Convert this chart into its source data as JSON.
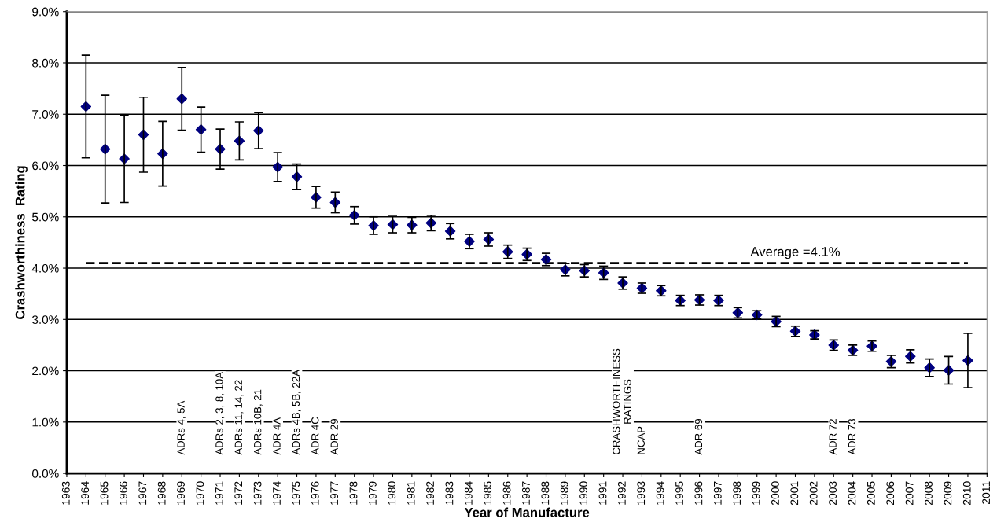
{
  "chart_data": {
    "type": "scatter",
    "xlabel": "Year of Manufacture",
    "ylabel": "Crashworthiness  Rating",
    "x": [
      1964,
      1965,
      1966,
      1967,
      1968,
      1969,
      1970,
      1971,
      1972,
      1973,
      1974,
      1975,
      1976,
      1977,
      1978,
      1979,
      1980,
      1981,
      1982,
      1983,
      1984,
      1985,
      1986,
      1987,
      1988,
      1989,
      1990,
      1991,
      1992,
      1993,
      1994,
      1995,
      1996,
      1997,
      1998,
      1999,
      2000,
      2001,
      2002,
      2003,
      2004,
      2005,
      2006,
      2007,
      2008,
      2009,
      2010
    ],
    "series": [
      {
        "color": "#000080",
        "values": [
          7.15,
          6.32,
          6.13,
          6.6,
          6.23,
          7.3,
          6.7,
          6.32,
          6.48,
          6.68,
          5.97,
          5.78,
          5.38,
          5.28,
          5.03,
          4.83,
          4.85,
          4.84,
          4.88,
          4.72,
          4.52,
          4.56,
          4.32,
          4.27,
          4.17,
          3.97,
          3.95,
          3.91,
          3.71,
          3.61,
          3.56,
          3.37,
          3.38,
          3.37,
          3.13,
          3.09,
          2.96,
          2.77,
          2.7,
          2.5,
          2.4,
          2.48,
          2.18,
          2.28,
          2.06,
          2.01,
          2.2
        ],
        "errors": [
          1.0,
          1.05,
          0.85,
          0.73,
          0.63,
          0.61,
          0.44,
          0.39,
          0.37,
          0.35,
          0.28,
          0.25,
          0.21,
          0.2,
          0.17,
          0.17,
          0.16,
          0.15,
          0.15,
          0.15,
          0.14,
          0.13,
          0.13,
          0.12,
          0.12,
          0.12,
          0.12,
          0.13,
          0.12,
          0.1,
          0.1,
          0.1,
          0.1,
          0.1,
          0.1,
          0.08,
          0.1,
          0.1,
          0.08,
          0.1,
          0.1,
          0.1,
          0.12,
          0.13,
          0.17,
          0.27,
          0.53
        ]
      }
    ],
    "marker": "diamond",
    "grid": "y",
    "xlim": [
      1963,
      2011
    ],
    "xticks": [
      1963,
      1964,
      1965,
      1966,
      1967,
      1968,
      1969,
      1970,
      1971,
      1972,
      1973,
      1974,
      1975,
      1976,
      1977,
      1978,
      1979,
      1980,
      1981,
      1982,
      1983,
      1984,
      1985,
      1986,
      1987,
      1988,
      1989,
      1990,
      1991,
      1992,
      1993,
      1994,
      1995,
      1996,
      1997,
      1998,
      1999,
      2000,
      2001,
      2002,
      2003,
      2004,
      2005,
      2006,
      2007,
      2008,
      2009,
      2010,
      2011
    ],
    "ylim": [
      0,
      9
    ],
    "yticks": [
      {
        "value": 0,
        "label": "0.0%"
      },
      {
        "value": 1,
        "label": "1.0%"
      },
      {
        "value": 2,
        "label": "2.0%"
      },
      {
        "value": 3,
        "label": "3.0%"
      },
      {
        "value": 4,
        "label": "4.0%"
      },
      {
        "value": 5,
        "label": "5.0%"
      },
      {
        "value": 6,
        "label": "6.0%"
      },
      {
        "value": 7,
        "label": "7.0%"
      },
      {
        "value": 8,
        "label": "8.0%"
      },
      {
        "value": 9,
        "label": "9.0%"
      }
    ],
    "ref_lines": [
      {
        "axis": "y",
        "value": 4.1,
        "label": "Average =4.1%",
        "color": "#000000",
        "line_style": "dashed"
      }
    ],
    "annotations": [
      "ADRs 4, 5A",
      "ADRs 2, 3, 8, 10A",
      "ADRs 11, 14, 22",
      "ADRs 10B, 21",
      "ADR 4A",
      "ADRs 4B, 5B, 22A",
      "ADR 4C",
      "ADR 29",
      "CRASHWORTHINESS\nRATINGS",
      "NCAP",
      "ADR 69",
      "ADR 72",
      "ADR 73"
    ]
  }
}
